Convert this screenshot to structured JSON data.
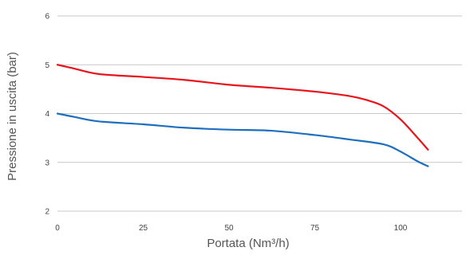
{
  "chart_data": {
    "type": "line",
    "title": "",
    "xlabel": "Portata (Nm³/h)",
    "ylabel": "Pressione in uscita (bar)",
    "xlim": [
      0,
      120
    ],
    "ylim": [
      2,
      6
    ],
    "x_ticks": [
      0,
      25,
      50,
      75,
      100
    ],
    "y_ticks": [
      2,
      3,
      4,
      5,
      6
    ],
    "x_tick_labels": [
      "0",
      "25",
      "50",
      "75",
      "100"
    ],
    "y_tick_labels": [
      "2",
      "3",
      "4",
      "5",
      "6"
    ],
    "grid": "horizontal",
    "legend": "none",
    "series": [
      {
        "color": "#e8141c",
        "x": [
          0,
          5,
          12,
          25,
          37,
          50,
          62,
          75,
          85,
          90,
          95,
          100,
          105,
          108
        ],
        "y": [
          5.0,
          4.92,
          4.81,
          4.75,
          4.69,
          4.59,
          4.53,
          4.45,
          4.36,
          4.28,
          4.15,
          3.88,
          3.5,
          3.26
        ]
      },
      {
        "color": "#1f6fbf",
        "x": [
          0,
          5,
          12,
          25,
          37,
          50,
          62,
          75,
          85,
          95,
          100,
          105,
          108
        ],
        "y": [
          4.0,
          3.93,
          3.84,
          3.78,
          3.71,
          3.67,
          3.65,
          3.56,
          3.47,
          3.37,
          3.22,
          3.02,
          2.92
        ]
      }
    ]
  }
}
